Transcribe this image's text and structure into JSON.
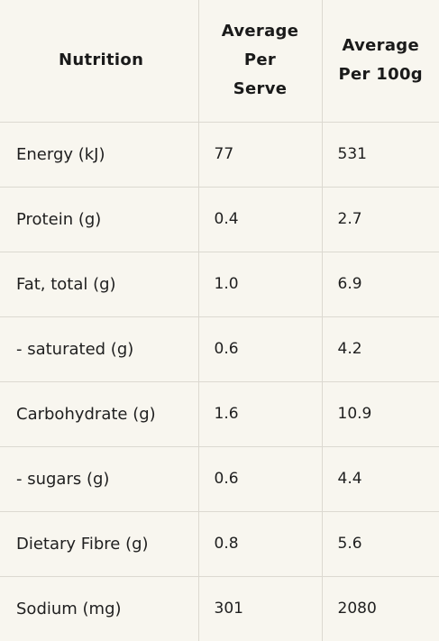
{
  "header": {
    "col1": "Nutrition",
    "col2_lines": [
      "Average",
      "Per",
      "Serve"
    ],
    "col3_lines": [
      "Average",
      "Per 100g"
    ]
  },
  "rows": [
    {
      "label": "Energy (kJ)",
      "per_serve": "77",
      "per_100g": "531"
    },
    {
      "label": "Protein (g)",
      "per_serve": "0.4",
      "per_100g": "2.7"
    },
    {
      "label": "Fat, total (g)",
      "per_serve": "1.0",
      "per_100g": "6.9"
    },
    {
      "label": "- saturated (g)",
      "per_serve": "0.6",
      "per_100g": "4.2"
    },
    {
      "label": "Carbohydrate (g)",
      "per_serve": "1.6",
      "per_100g": "10.9"
    },
    {
      "label": "- sugars (g)",
      "per_serve": "0.6",
      "per_100g": "4.4"
    },
    {
      "label": "Dietary Fibre (g)",
      "per_serve": "0.8",
      "per_100g": "5.6"
    },
    {
      "label": "Sodium (mg)",
      "per_serve": "301",
      "per_100g": "2080"
    }
  ]
}
